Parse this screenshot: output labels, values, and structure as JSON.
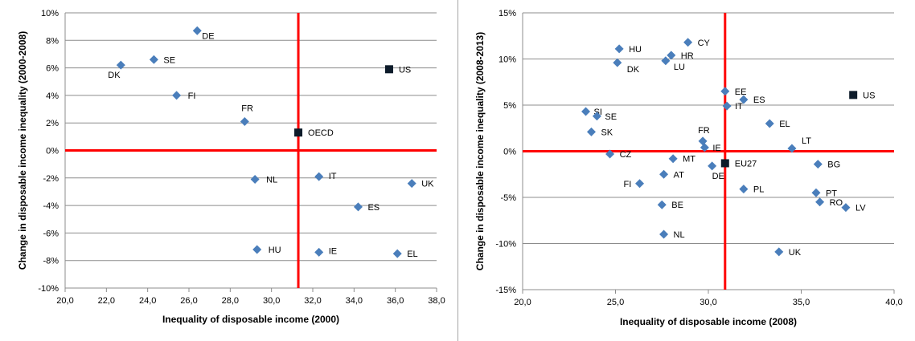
{
  "chart_data": [
    {
      "type": "scatter",
      "title": "",
      "xlabel": "Inequality of disposable income (2000)",
      "ylabel": "Change in disposable income inequality (2000-2008)",
      "xlim": [
        20,
        38
      ],
      "ylim": [
        -10,
        10
      ],
      "x_ticks": [
        "20,0",
        "22,0",
        "24,0",
        "26,0",
        "28,0",
        "30,0",
        "32,0",
        "34,0",
        "36,0",
        "38,0"
      ],
      "y_ticks": [
        "-10%",
        "-8%",
        "-6%",
        "-4%",
        "-2%",
        "0%",
        "2%",
        "4%",
        "6%",
        "8%",
        "10%"
      ],
      "grid": "horizontal",
      "reference_lines": {
        "x": 31.3,
        "y": 0,
        "color": "#ff0000"
      },
      "colors": {
        "country": "#4a7ebb",
        "benchmark": "#0d1b2a",
        "reference": "#ff0000"
      },
      "series": [
        {
          "marker": "diamond",
          "points": [
            {
              "label": "DE",
              "x": 26.4,
              "y": 8.7
            },
            {
              "label": "SE",
              "x": 24.3,
              "y": 6.6
            },
            {
              "label": "DK",
              "x": 22.7,
              "y": 6.2
            },
            {
              "label": "FI",
              "x": 25.4,
              "y": 4.0
            },
            {
              "label": "FR",
              "x": 28.7,
              "y": 2.1
            },
            {
              "label": "NL",
              "x": 29.2,
              "y": -2.1
            },
            {
              "label": "IT",
              "x": 32.3,
              "y": -1.9
            },
            {
              "label": "UK",
              "x": 36.8,
              "y": -2.4
            },
            {
              "label": "ES",
              "x": 34.2,
              "y": -4.1
            },
            {
              "label": "HU",
              "x": 29.3,
              "y": -7.2
            },
            {
              "label": "IE",
              "x": 32.3,
              "y": -7.4
            },
            {
              "label": "EL",
              "x": 36.1,
              "y": -7.5
            }
          ]
        },
        {
          "marker": "square",
          "points": [
            {
              "label": "US",
              "x": 35.7,
              "y": 5.9
            },
            {
              "label": "OECD",
              "x": 31.3,
              "y": 1.3
            }
          ]
        }
      ]
    },
    {
      "type": "scatter",
      "title": "",
      "xlabel": "Inequality of disposable income (2008)",
      "ylabel": "Change in disposable income inequality (2008-2013)",
      "xlim": [
        20,
        40
      ],
      "ylim": [
        -15,
        15
      ],
      "x_ticks": [
        "20,0",
        "25,0",
        "30,0",
        "35,0",
        "40,0"
      ],
      "y_ticks": [
        "-15%",
        "-10%",
        "-5%",
        "0%",
        "5%",
        "10%",
        "15%"
      ],
      "grid": "horizontal",
      "reference_lines": {
        "x": 30.9,
        "y": 0,
        "color": "#ff0000"
      },
      "colors": {
        "country": "#4a7ebb",
        "benchmark": "#0d1b2a",
        "reference": "#ff0000"
      },
      "series": [
        {
          "marker": "diamond",
          "points": [
            {
              "label": "CY",
              "x": 28.9,
              "y": 11.8
            },
            {
              "label": "HU",
              "x": 25.2,
              "y": 11.1
            },
            {
              "label": "HR",
              "x": 28.0,
              "y": 10.4
            },
            {
              "label": "LU",
              "x": 27.7,
              "y": 9.8
            },
            {
              "label": "DK",
              "x": 25.1,
              "y": 9.6
            },
            {
              "label": "EE",
              "x": 30.9,
              "y": 6.5
            },
            {
              "label": "ES",
              "x": 31.9,
              "y": 5.6
            },
            {
              "label": "IT",
              "x": 31.0,
              "y": 4.9
            },
            {
              "label": "SI",
              "x": 23.4,
              "y": 4.3
            },
            {
              "label": "SE",
              "x": 24.0,
              "y": 3.8
            },
            {
              "label": "EL",
              "x": 33.3,
              "y": 3.0
            },
            {
              "label": "SK",
              "x": 23.7,
              "y": 2.1
            },
            {
              "label": "FR",
              "x": 29.7,
              "y": 1.1
            },
            {
              "label": "IE",
              "x": 29.8,
              "y": 0.4
            },
            {
              "label": "LT",
              "x": 34.5,
              "y": 0.3
            },
            {
              "label": "CZ",
              "x": 24.7,
              "y": -0.3
            },
            {
              "label": "MT",
              "x": 28.1,
              "y": -0.8
            },
            {
              "label": "DE",
              "x": 30.2,
              "y": -1.6
            },
            {
              "label": "BG",
              "x": 35.9,
              "y": -1.4
            },
            {
              "label": "AT",
              "x": 27.6,
              "y": -2.5
            },
            {
              "label": "FI",
              "x": 26.3,
              "y": -3.5
            },
            {
              "label": "PL",
              "x": 31.9,
              "y": -4.1
            },
            {
              "label": "PT",
              "x": 35.8,
              "y": -4.5
            },
            {
              "label": "RO",
              "x": 36.0,
              "y": -5.5
            },
            {
              "label": "LV",
              "x": 37.4,
              "y": -6.1
            },
            {
              "label": "BE",
              "x": 27.5,
              "y": -5.8
            },
            {
              "label": "NL",
              "x": 27.6,
              "y": -9.0
            },
            {
              "label": "UK",
              "x": 33.8,
              "y": -10.9
            }
          ]
        },
        {
          "marker": "square",
          "points": [
            {
              "label": "US",
              "x": 37.8,
              "y": 6.1
            },
            {
              "label": "EU27",
              "x": 30.9,
              "y": -1.3
            }
          ]
        }
      ]
    }
  ]
}
